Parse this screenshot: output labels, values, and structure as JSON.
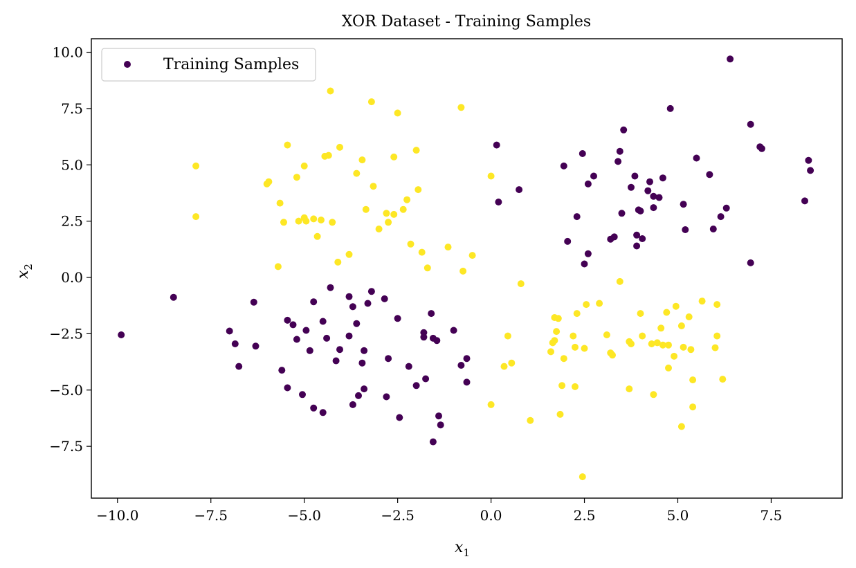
{
  "chart_data": {
    "type": "scatter",
    "title": "XOR Dataset - Training Samples",
    "xlabel": "x",
    "xlabel_sub": "1",
    "ylabel": "x",
    "ylabel_sub": "2",
    "xlim": [
      -10.7,
      9.4
    ],
    "ylim": [
      -9.8,
      10.6
    ],
    "x_ticks": [
      -10.0,
      -7.5,
      -5.0,
      -2.5,
      0.0,
      2.5,
      5.0,
      7.5
    ],
    "x_tick_labels": [
      "−10.0",
      "−7.5",
      "−5.0",
      "−2.5",
      "0.0",
      "2.5",
      "5.0",
      "7.5"
    ],
    "y_ticks": [
      -7.5,
      -5.0,
      -2.5,
      0.0,
      2.5,
      5.0,
      7.5,
      10.0
    ],
    "y_tick_labels": [
      "−7.5",
      "−5.0",
      "−2.5",
      "0.0",
      "2.5",
      "5.0",
      "7.5",
      "10.0"
    ],
    "grid": false,
    "legend": {
      "position": "top-left",
      "label": "Training Samples"
    },
    "colors": {
      "class0": "#440154",
      "class1": "#fde725"
    },
    "series": [
      {
        "class": 0,
        "color": "#440154",
        "points": [
          [
            -9.9,
            -2.55
          ],
          [
            -8.5,
            -0.88
          ],
          [
            -7.0,
            -2.38
          ],
          [
            -6.85,
            -2.95
          ],
          [
            -6.75,
            -3.95
          ],
          [
            -6.35,
            -1.1
          ],
          [
            -6.3,
            -3.05
          ],
          [
            -5.6,
            -4.12
          ],
          [
            -5.45,
            -1.9
          ],
          [
            -5.45,
            -4.9
          ],
          [
            -5.3,
            -2.1
          ],
          [
            -5.2,
            -2.75
          ],
          [
            -5.05,
            -5.2
          ],
          [
            -4.95,
            -2.35
          ],
          [
            -4.85,
            -3.25
          ],
          [
            -4.75,
            -5.8
          ],
          [
            -4.75,
            -1.08
          ],
          [
            -4.5,
            -6.0
          ],
          [
            -4.5,
            -1.95
          ],
          [
            -4.4,
            -2.7
          ],
          [
            -4.3,
            -0.45
          ],
          [
            -4.15,
            -3.7
          ],
          [
            -4.05,
            -3.2
          ],
          [
            -3.8,
            -0.85
          ],
          [
            -3.8,
            -2.6
          ],
          [
            -3.7,
            -1.3
          ],
          [
            -3.7,
            -5.65
          ],
          [
            -3.6,
            -2.05
          ],
          [
            -3.55,
            -5.25
          ],
          [
            -3.45,
            -3.8
          ],
          [
            -3.4,
            -3.25
          ],
          [
            -3.4,
            -4.95
          ],
          [
            -3.3,
            -1.15
          ],
          [
            -3.2,
            -0.62
          ],
          [
            -2.85,
            -0.95
          ],
          [
            -2.8,
            -5.3
          ],
          [
            -2.75,
            -3.6
          ],
          [
            -2.5,
            -1.82
          ],
          [
            -2.45,
            -6.22
          ],
          [
            -2.2,
            -3.95
          ],
          [
            -2.0,
            -4.8
          ],
          [
            -1.8,
            -2.45
          ],
          [
            -1.8,
            -2.65
          ],
          [
            -1.75,
            -4.5
          ],
          [
            -1.6,
            -1.6
          ],
          [
            -1.55,
            -2.7
          ],
          [
            -1.55,
            -7.3
          ],
          [
            -1.45,
            -2.8
          ],
          [
            -1.4,
            -6.15
          ],
          [
            -1.35,
            -6.55
          ],
          [
            -1.0,
            -2.35
          ],
          [
            -0.8,
            -3.9
          ],
          [
            -0.65,
            -3.6
          ],
          [
            -0.65,
            -4.65
          ],
          [
            0.15,
            5.88
          ],
          [
            0.2,
            3.35
          ],
          [
            0.75,
            3.9
          ],
          [
            1.95,
            4.95
          ],
          [
            2.05,
            1.6
          ],
          [
            2.3,
            2.7
          ],
          [
            2.45,
            5.5
          ],
          [
            2.5,
            0.6
          ],
          [
            2.6,
            1.05
          ],
          [
            2.6,
            4.15
          ],
          [
            2.75,
            4.5
          ],
          [
            3.2,
            1.7
          ],
          [
            3.3,
            1.8
          ],
          [
            3.4,
            5.15
          ],
          [
            3.45,
            5.6
          ],
          [
            3.5,
            2.85
          ],
          [
            3.55,
            6.55
          ],
          [
            3.75,
            4.0
          ],
          [
            3.85,
            4.5
          ],
          [
            3.9,
            1.4
          ],
          [
            3.9,
            1.88
          ],
          [
            3.95,
            3.0
          ],
          [
            4.0,
            2.95
          ],
          [
            4.05,
            1.72
          ],
          [
            4.2,
            3.85
          ],
          [
            4.25,
            4.25
          ],
          [
            4.35,
            3.1
          ],
          [
            4.35,
            3.6
          ],
          [
            4.5,
            3.55
          ],
          [
            4.6,
            4.42
          ],
          [
            4.8,
            7.5
          ],
          [
            5.15,
            3.25
          ],
          [
            5.2,
            2.12
          ],
          [
            5.5,
            5.3
          ],
          [
            5.85,
            4.57
          ],
          [
            5.95,
            2.15
          ],
          [
            6.15,
            2.7
          ],
          [
            6.3,
            3.08
          ],
          [
            6.4,
            9.7
          ],
          [
            6.95,
            0.65
          ],
          [
            6.95,
            6.8
          ],
          [
            7.2,
            5.8
          ],
          [
            7.25,
            5.72
          ],
          [
            8.4,
            3.4
          ],
          [
            8.5,
            5.2
          ],
          [
            8.55,
            4.75
          ]
        ]
      },
      {
        "class": 1,
        "color": "#fde725",
        "points": [
          [
            -7.9,
            4.95
          ],
          [
            -7.9,
            2.7
          ],
          [
            -6.0,
            4.15
          ],
          [
            -5.95,
            4.25
          ],
          [
            -5.7,
            0.48
          ],
          [
            -5.65,
            3.3
          ],
          [
            -5.55,
            2.45
          ],
          [
            -5.45,
            5.88
          ],
          [
            -5.2,
            4.45
          ],
          [
            -5.15,
            2.5
          ],
          [
            -5.0,
            4.95
          ],
          [
            -5.0,
            2.65
          ],
          [
            -4.95,
            2.5
          ],
          [
            -4.75,
            2.6
          ],
          [
            -4.65,
            1.82
          ],
          [
            -4.55,
            2.55
          ],
          [
            -4.45,
            5.38
          ],
          [
            -4.35,
            5.42
          ],
          [
            -4.3,
            8.28
          ],
          [
            -4.25,
            2.45
          ],
          [
            -4.1,
            0.68
          ],
          [
            -4.05,
            5.78
          ],
          [
            -3.8,
            1.02
          ],
          [
            -3.6,
            4.62
          ],
          [
            -3.45,
            5.22
          ],
          [
            -3.35,
            3.02
          ],
          [
            -3.2,
            7.8
          ],
          [
            -3.15,
            4.05
          ],
          [
            -3.0,
            2.15
          ],
          [
            -2.8,
            2.85
          ],
          [
            -2.75,
            2.45
          ],
          [
            -2.6,
            2.8
          ],
          [
            -2.6,
            5.35
          ],
          [
            -2.5,
            7.3
          ],
          [
            -2.35,
            3.02
          ],
          [
            -2.25,
            3.45
          ],
          [
            -2.15,
            1.48
          ],
          [
            -2.0,
            5.65
          ],
          [
            -1.95,
            3.9
          ],
          [
            -1.85,
            1.12
          ],
          [
            -1.7,
            0.42
          ],
          [
            -1.15,
            1.35
          ],
          [
            -0.75,
            0.28
          ],
          [
            -0.8,
            7.55
          ],
          [
            -0.5,
            0.98
          ],
          [
            0.0,
            4.5
          ],
          [
            0.0,
            -5.65
          ],
          [
            0.35,
            -3.95
          ],
          [
            0.45,
            -2.6
          ],
          [
            0.55,
            -3.8
          ],
          [
            0.8,
            -0.28
          ],
          [
            1.05,
            -6.35
          ],
          [
            1.6,
            -3.3
          ],
          [
            1.65,
            -2.9
          ],
          [
            1.7,
            -2.8
          ],
          [
            1.7,
            -1.78
          ],
          [
            1.75,
            -2.4
          ],
          [
            1.8,
            -1.82
          ],
          [
            1.85,
            -6.08
          ],
          [
            1.9,
            -4.8
          ],
          [
            1.95,
            -3.6
          ],
          [
            2.2,
            -2.6
          ],
          [
            2.25,
            -3.1
          ],
          [
            2.25,
            -4.85
          ],
          [
            2.3,
            -1.6
          ],
          [
            2.45,
            -8.85
          ],
          [
            2.5,
            -3.15
          ],
          [
            2.55,
            -1.2
          ],
          [
            2.9,
            -1.15
          ],
          [
            3.1,
            -2.55
          ],
          [
            3.2,
            -3.35
          ],
          [
            3.25,
            -3.45
          ],
          [
            3.45,
            -0.18
          ],
          [
            3.7,
            -2.85
          ],
          [
            3.7,
            -4.95
          ],
          [
            3.75,
            -2.95
          ],
          [
            4.0,
            -1.6
          ],
          [
            4.05,
            -2.6
          ],
          [
            4.3,
            -2.95
          ],
          [
            4.35,
            -5.2
          ],
          [
            4.45,
            -2.9
          ],
          [
            4.55,
            -2.25
          ],
          [
            4.6,
            -3.0
          ],
          [
            4.7,
            -1.55
          ],
          [
            4.75,
            -3.0
          ],
          [
            4.75,
            -4.02
          ],
          [
            4.9,
            -3.5
          ],
          [
            4.95,
            -1.28
          ],
          [
            5.1,
            -6.62
          ],
          [
            5.1,
            -2.15
          ],
          [
            5.15,
            -3.1
          ],
          [
            5.3,
            -1.75
          ],
          [
            5.35,
            -3.2
          ],
          [
            5.4,
            -4.55
          ],
          [
            5.4,
            -5.75
          ],
          [
            5.65,
            -1.05
          ],
          [
            6.0,
            -3.12
          ],
          [
            6.05,
            -2.6
          ],
          [
            6.05,
            -1.2
          ],
          [
            6.2,
            -4.52
          ]
        ]
      }
    ]
  }
}
